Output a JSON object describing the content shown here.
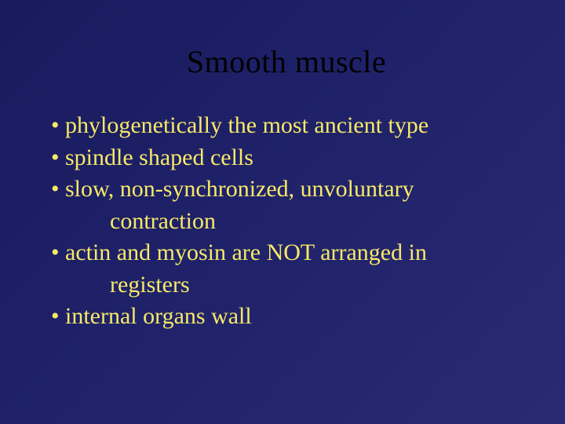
{
  "slide": {
    "title": "Smooth muscle",
    "title_color": "#000000",
    "title_fontsize": 40,
    "body_color": "#f7e968",
    "body_fontsize": 30,
    "background_gradient": [
      "#1a1a5e",
      "#1e2168",
      "#2a2a72"
    ],
    "bullets": [
      {
        "text": "• phylogenetically the most ancient type"
      },
      {
        "text": "• spindle shaped cells"
      },
      {
        "text": "• slow, non-synchronized, unvoluntary",
        "cont": "contraction"
      },
      {
        "text": "• actin and myosin are NOT arranged in",
        "cont": "registers"
      },
      {
        "text": "• internal organs wall"
      }
    ]
  }
}
